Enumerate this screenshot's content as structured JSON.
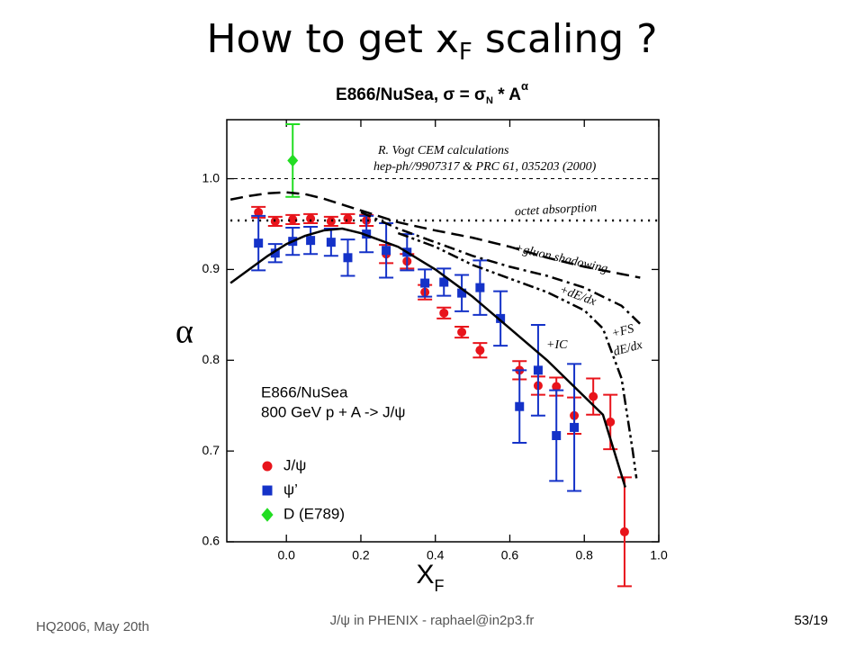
{
  "slide": {
    "title": {
      "main": "How to get x",
      "sub": "F",
      "rest": " scaling ?"
    },
    "footer_left": "HQ2006, May 20th",
    "footer_center": "J/ψ in PHENIX - raphael@in2p3.fr",
    "footer_right": "53/19"
  },
  "chart_data": {
    "type": "scatter",
    "title": {
      "main": "E866/NuSea, σ = σ",
      "sub": "N",
      "mid": " * A",
      "sup": "α"
    },
    "x_label": {
      "main": "X",
      "sub": "F"
    },
    "y_label": "α",
    "xlim": [
      -0.16,
      1.0
    ],
    "ylim": [
      0.6,
      1.065
    ],
    "xticks": [
      {
        "value": 0,
        "label": "0.0"
      },
      0.2,
      0.4,
      0.6,
      0.8,
      {
        "value": 1,
        "label": "1.0"
      }
    ],
    "yticks": [
      0.6,
      0.7,
      0.8,
      0.9,
      {
        "value": 1,
        "label": "1.0"
      }
    ],
    "reference_line": 1,
    "legend_header": [
      "E866/NuSea",
      "800 GeV p + A -> J/ψ"
    ],
    "annotations": [
      "R. Vogt CEM calculations",
      "hep-ph//9907317 & PRC 61,  035203 (2000)",
      "octet absorption",
      "+gluon shadowing",
      "+dE/dx",
      "+FS",
      "dE/dx",
      "+IC"
    ],
    "series": [
      {
        "name": "J/ψ",
        "kind": "points",
        "marker": "circle",
        "color": "#e8141b",
        "x": [
          -0.075,
          -0.03,
          0.017,
          0.065,
          0.12,
          0.165,
          0.215,
          0.268,
          0.324,
          0.372,
          0.423,
          0.471,
          0.52,
          0.626,
          0.676,
          0.725,
          0.773,
          0.824,
          0.87,
          0.908
        ],
        "values": [
          0.963,
          0.953,
          0.955,
          0.956,
          0.953,
          0.956,
          0.954,
          0.917,
          0.909,
          0.875,
          0.852,
          0.831,
          0.811,
          0.789,
          0.772,
          0.771,
          0.739,
          0.76,
          0.732,
          0.611
        ],
        "errors": [
          0.006,
          0.005,
          0.005,
          0.005,
          0.005,
          0.005,
          0.006,
          0.01,
          0.008,
          0.008,
          0.006,
          0.006,
          0.008,
          0.01,
          0.01,
          0.01,
          0.02,
          0.02,
          0.03,
          0.06
        ]
      },
      {
        "name": "ψ’",
        "kind": "points",
        "marker": "square",
        "color": "#1432c8",
        "x": [
          -0.075,
          -0.03,
          0.017,
          0.065,
          0.12,
          0.165,
          0.215,
          0.268,
          0.324,
          0.372,
          0.423,
          0.471,
          0.52,
          0.575,
          0.626,
          0.676,
          0.725,
          0.773
        ],
        "values": [
          0.929,
          0.918,
          0.931,
          0.932,
          0.93,
          0.913,
          0.939,
          0.921,
          0.919,
          0.885,
          0.886,
          0.874,
          0.88,
          0.846,
          0.749,
          0.789,
          0.717,
          0.726
        ],
        "errors": [
          0.03,
          0.01,
          0.015,
          0.015,
          0.015,
          0.02,
          0.02,
          0.03,
          0.02,
          0.015,
          0.015,
          0.02,
          0.03,
          0.03,
          0.04,
          0.05,
          0.05,
          0.07
        ]
      },
      {
        "name": "D (E789)",
        "kind": "points",
        "marker": "diamond",
        "color": "#22dd22",
        "x": [
          0.017
        ],
        "values": [
          1.02
        ],
        "errors": [
          0.04
        ]
      },
      {
        "kind": "line",
        "color": "#000000",
        "dash": "2,6",
        "x": [
          -0.15,
          1.0
        ],
        "values": [
          0.954,
          0.954
        ]
      },
      {
        "kind": "line",
        "color": "#000000",
        "dash": "14,7",
        "x": [
          -0.15,
          -0.1,
          -0.05,
          0,
          0.05,
          0.1,
          0.2,
          0.3,
          0.4,
          0.5,
          0.6,
          0.7,
          0.8,
          0.9,
          0.95
        ],
        "values": [
          0.977,
          0.981,
          0.984,
          0.985,
          0.983,
          0.978,
          0.965,
          0.952,
          0.943,
          0.935,
          0.925,
          0.913,
          0.903,
          0.895,
          0.891
        ]
      },
      {
        "kind": "line",
        "color": "#000000",
        "dash": "12,5,3,5",
        "x": [
          0.2,
          0.3,
          0.4,
          0.5,
          0.6,
          0.7,
          0.8,
          0.9,
          0.95
        ],
        "values": [
          0.963,
          0.945,
          0.93,
          0.915,
          0.903,
          0.893,
          0.88,
          0.86,
          0.84
        ]
      },
      {
        "kind": "line",
        "color": "#000000",
        "dash": "12,4,3,4,3,4",
        "x": [
          0.3,
          0.4,
          0.5,
          0.6,
          0.7,
          0.8,
          0.85,
          0.9,
          0.93,
          0.94
        ],
        "values": [
          0.94,
          0.925,
          0.905,
          0.89,
          0.875,
          0.855,
          0.835,
          0.78,
          0.7,
          0.67
        ]
      },
      {
        "kind": "line",
        "color": "#000000",
        "dash": "none",
        "x": [
          -0.15,
          -0.1,
          -0.05,
          0,
          0.05,
          0.1,
          0.15,
          0.2,
          0.3,
          0.4,
          0.5,
          0.6,
          0.7,
          0.8,
          0.85,
          0.91
        ],
        "values": [
          0.885,
          0.9,
          0.915,
          0.928,
          0.937,
          0.943,
          0.945,
          0.94,
          0.925,
          0.9,
          0.87,
          0.835,
          0.8,
          0.76,
          0.74,
          0.66
        ]
      }
    ]
  }
}
